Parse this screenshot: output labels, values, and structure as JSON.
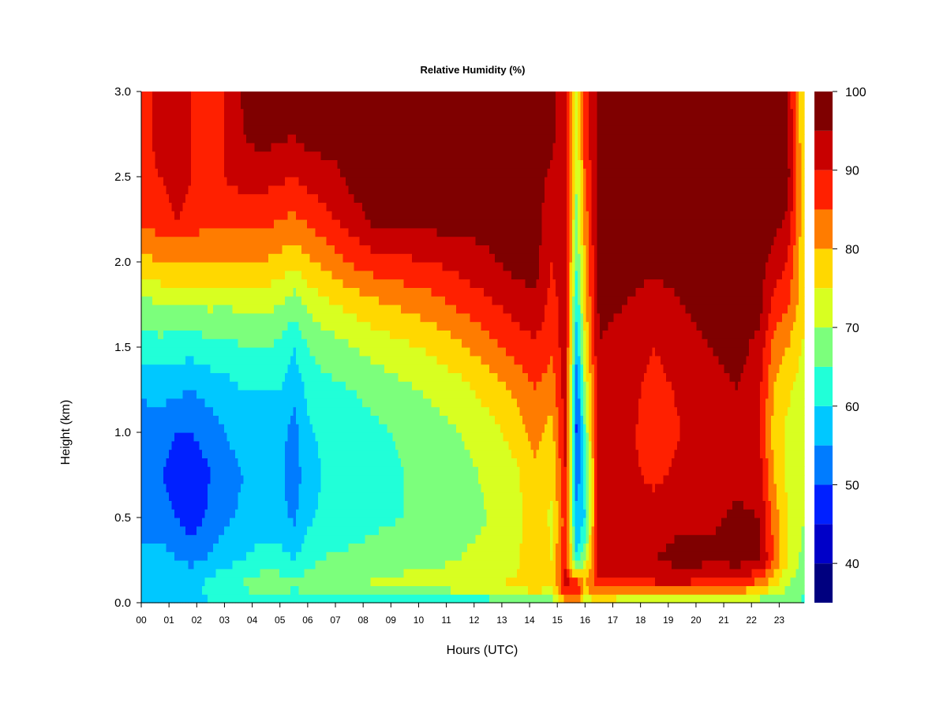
{
  "chart_data": {
    "type": "heatmap",
    "title": "Relative Humidity (%)",
    "xlabel": "Hours (UTC)",
    "ylabel": "Height (km)",
    "xlim": [
      0,
      23.9
    ],
    "ylim": [
      0,
      3.0
    ],
    "x_ticks": [
      "00",
      "01",
      "02",
      "03",
      "04",
      "05",
      "06",
      "07",
      "08",
      "09",
      "10",
      "11",
      "12",
      "13",
      "14",
      "15",
      "16",
      "17",
      "18",
      "19",
      "20",
      "21",
      "22",
      "23"
    ],
    "y_ticks": [
      "0.0",
      "0.5",
      "1.0",
      "1.5",
      "2.0",
      "2.5",
      "3.0"
    ],
    "colorbar": {
      "range": [
        35,
        100
      ],
      "ticks": [
        "40",
        "50",
        "60",
        "70",
        "80",
        "90",
        "100"
      ],
      "levels": [
        {
          "from": 35,
          "to": 40,
          "color": "#00007f"
        },
        {
          "from": 40,
          "to": 45,
          "color": "#0000c8"
        },
        {
          "from": 45,
          "to": 50,
          "color": "#0020ff"
        },
        {
          "from": 50,
          "to": 55,
          "color": "#007cff"
        },
        {
          "from": 55,
          "to": 60,
          "color": "#00c8ff"
        },
        {
          "from": 60,
          "to": 65,
          "color": "#21ffd8"
        },
        {
          "from": 65,
          "to": 70,
          "color": "#7cff7c"
        },
        {
          "from": 70,
          "to": 75,
          "color": "#d8ff21"
        },
        {
          "from": 75,
          "to": 80,
          "color": "#ffd800"
        },
        {
          "from": 80,
          "to": 85,
          "color": "#ff7c00"
        },
        {
          "from": 85,
          "to": 90,
          "color": "#ff2000"
        },
        {
          "from": 90,
          "to": 95,
          "color": "#c80000"
        },
        {
          "from": 95,
          "to": 100,
          "color": "#7f0000"
        }
      ]
    },
    "heights_km": [
      0.0,
      0.1,
      0.25,
      0.5,
      0.75,
      1.0,
      1.25,
      1.5,
      1.75,
      2.0,
      2.25,
      2.5,
      2.75,
      3.0
    ],
    "rh_profiles": [
      {
        "hour": 0.0,
        "rh": [
          55,
          60,
          58,
          52,
          50,
          52,
          56,
          62,
          68,
          78,
          86,
          88,
          88,
          88
        ]
      },
      {
        "hour": 0.7,
        "rh": [
          58,
          60,
          57,
          52,
          50,
          52,
          57,
          63,
          70,
          80,
          88,
          90,
          92,
          92
        ]
      },
      {
        "hour": 1.3,
        "rh": [
          58,
          60,
          55,
          50,
          48,
          50,
          56,
          62,
          70,
          80,
          90,
          92,
          92,
          92
        ]
      },
      {
        "hour": 1.8,
        "rh": [
          58,
          58,
          54,
          47,
          47,
          50,
          55,
          62,
          70,
          80,
          88,
          90,
          90,
          90
        ]
      },
      {
        "hour": 2.5,
        "rh": [
          60,
          62,
          56,
          51,
          50,
          52,
          57,
          63,
          71,
          80,
          86,
          86,
          85,
          85
        ]
      },
      {
        "hour": 3.0,
        "rh": [
          60,
          65,
          58,
          54,
          53,
          55,
          58,
          63,
          70,
          80,
          87,
          90,
          90,
          90
        ]
      },
      {
        "hour": 3.7,
        "rh": [
          60,
          66,
          60,
          56,
          55,
          57,
          60,
          65,
          72,
          80,
          87,
          92,
          95,
          96
        ]
      },
      {
        "hour": 4.3,
        "rh": [
          60,
          68,
          62,
          58,
          57,
          58,
          60,
          65,
          72,
          80,
          87,
          92,
          97,
          98
        ]
      },
      {
        "hour": 5.0,
        "rh": [
          60,
          68,
          62,
          57,
          56,
          57,
          60,
          64,
          70,
          78,
          85,
          91,
          96,
          98
        ]
      },
      {
        "hour": 5.5,
        "rh": [
          60,
          66,
          60,
          54,
          52,
          53,
          56,
          60,
          67,
          76,
          84,
          90,
          95,
          97
        ]
      },
      {
        "hour": 6.0,
        "rh": [
          61,
          68,
          63,
          59,
          58,
          59,
          61,
          65,
          71,
          79,
          86,
          92,
          97,
          97
        ]
      },
      {
        "hour": 6.5,
        "rh": [
          62,
          70,
          65,
          61,
          60,
          61,
          63,
          67,
          73,
          81,
          88,
          93,
          97,
          97
        ]
      },
      {
        "hour": 7.0,
        "rh": [
          62,
          70,
          66,
          62,
          61,
          62,
          64,
          68,
          75,
          83,
          90,
          94,
          97,
          97
        ]
      },
      {
        "hour": 7.7,
        "rh": [
          62,
          70,
          66,
          63,
          62,
          63,
          65,
          70,
          77,
          86,
          93,
          97,
          97,
          97
        ]
      },
      {
        "hour": 8.5,
        "rh": [
          62,
          71,
          67,
          64,
          63,
          64,
          67,
          72,
          79,
          88,
          97,
          97,
          97,
          97
        ]
      },
      {
        "hour": 9.5,
        "rh": [
          62,
          72,
          68,
          65,
          65,
          66,
          69,
          74,
          81,
          89,
          97,
          97,
          97,
          97
        ]
      },
      {
        "hour": 10.5,
        "rh": [
          62,
          72,
          69,
          66,
          66,
          68,
          71,
          76,
          83,
          90,
          97,
          97,
          97,
          97
        ]
      },
      {
        "hour": 11.5,
        "rh": [
          62,
          73,
          70,
          68,
          68,
          70,
          73,
          79,
          86,
          92,
          97,
          97,
          97,
          97
        ]
      },
      {
        "hour": 12.5,
        "rh": [
          62,
          74,
          72,
          70,
          71,
          73,
          77,
          83,
          89,
          94,
          97,
          97,
          97,
          97
        ]
      },
      {
        "hour": 13.5,
        "rh": [
          63,
          76,
          74,
          73,
          74,
          77,
          81,
          87,
          92,
          97,
          97,
          97,
          97,
          97
        ]
      },
      {
        "hour": 14.2,
        "rh": [
          65,
          80,
          79,
          78,
          79,
          82,
          85,
          89,
          94,
          97,
          97,
          97,
          97,
          97
        ]
      },
      {
        "hour": 14.8,
        "rh": [
          66,
          76,
          75,
          74,
          76,
          78,
          82,
          86,
          88,
          90,
          92,
          94,
          96,
          96
        ]
      },
      {
        "hour": 15.3,
        "rh": [
          80,
          92,
          90,
          88,
          90,
          92,
          93,
          93,
          93,
          93,
          93,
          93,
          93,
          93
        ]
      },
      {
        "hour": 15.7,
        "rh": [
          82,
          90,
          60,
          55,
          52,
          48,
          50,
          56,
          60,
          65,
          68,
          70,
          72,
          72
        ]
      },
      {
        "hour": 16.0,
        "rh": [
          72,
          80,
          70,
          60,
          62,
          65,
          70,
          75,
          78,
          80,
          82,
          85,
          88,
          88
        ]
      },
      {
        "hour": 16.5,
        "rh": [
          72,
          88,
          95,
          93,
          93,
          93,
          94,
          95,
          96,
          97,
          97,
          97,
          97,
          97
        ]
      },
      {
        "hour": 17.5,
        "rh": [
          70,
          88,
          94,
          92,
          91,
          91,
          92,
          93,
          95,
          97,
          97,
          97,
          97,
          97
        ]
      },
      {
        "hour": 18.5,
        "rh": [
          70,
          89,
          95,
          92,
          89,
          88,
          88,
          90,
          92,
          97,
          97,
          97,
          97,
          97
        ]
      },
      {
        "hour": 19.5,
        "rh": [
          70,
          89,
          97,
          94,
          91,
          90,
          91,
          93,
          95,
          97,
          97,
          97,
          97,
          97
        ]
      },
      {
        "hour": 20.5,
        "rh": [
          68,
          88,
          96,
          94,
          92,
          92,
          93,
          95,
          97,
          97,
          97,
          97,
          97,
          97
        ]
      },
      {
        "hour": 21.5,
        "rh": [
          67,
          86,
          97,
          96,
          94,
          94,
          95,
          97,
          97,
          97,
          97,
          97,
          97,
          97
        ]
      },
      {
        "hour": 22.3,
        "rh": [
          66,
          82,
          96,
          95,
          92,
          90,
          91,
          93,
          97,
          97,
          97,
          97,
          97,
          97
        ]
      },
      {
        "hour": 22.8,
        "rh": [
          66,
          76,
          85,
          83,
          80,
          78,
          80,
          83,
          88,
          93,
          97,
          97,
          97,
          97
        ]
      },
      {
        "hour": 23.3,
        "rh": [
          66,
          70,
          75,
          75,
          74,
          74,
          76,
          80,
          86,
          90,
          94,
          97,
          96,
          95
        ]
      },
      {
        "hour": 23.9,
        "rh": [
          64,
          66,
          68,
          70,
          70,
          70,
          72,
          74,
          76,
          76,
          76,
          76,
          74,
          74
        ]
      }
    ]
  }
}
